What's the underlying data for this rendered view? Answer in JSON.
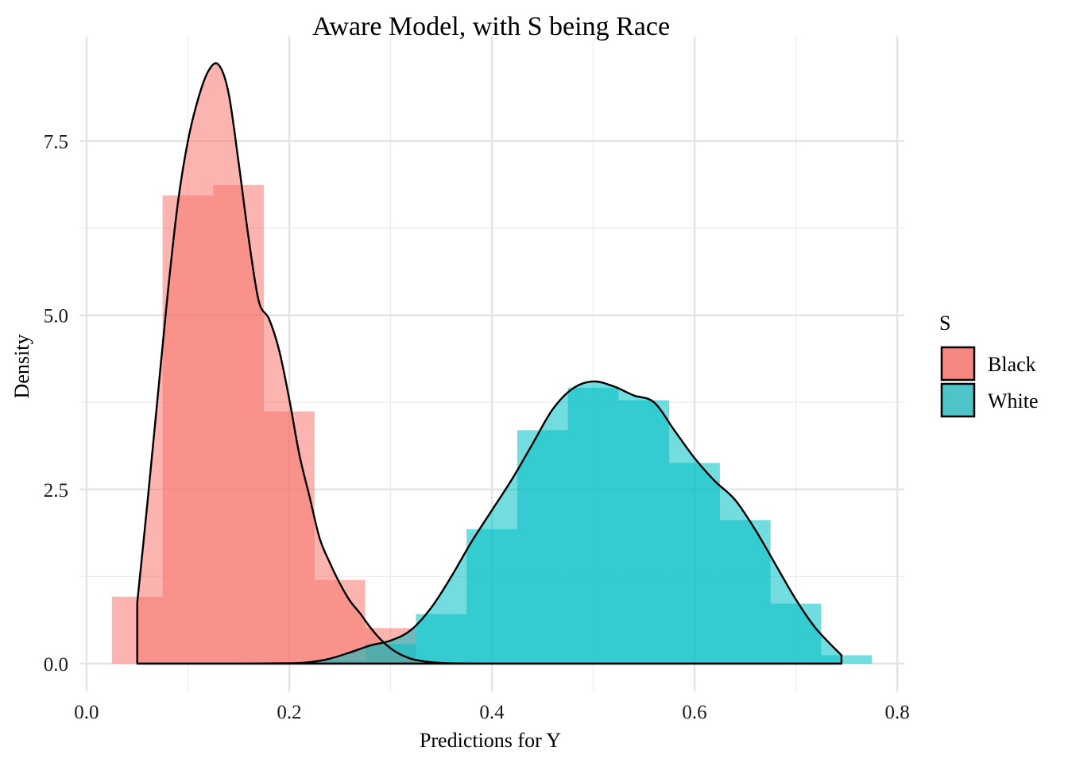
{
  "chart_data": {
    "type": "histogram+density",
    "title": "Aware Model, with S being Race",
    "xlabel": "Predictions for Y",
    "ylabel": "Density",
    "xlim": [
      -0.007,
      0.807
    ],
    "ylim": [
      -0.4,
      9.0
    ],
    "x_ticks": [
      0.0,
      0.2,
      0.4,
      0.6,
      0.8
    ],
    "x_tick_labels": [
      "0.0",
      "0.2",
      "0.4",
      "0.6",
      "0.8"
    ],
    "y_ticks": [
      0.0,
      2.5,
      5.0,
      7.5
    ],
    "y_tick_labels": [
      "0.0",
      "2.5",
      "5.0",
      "7.5"
    ],
    "grid": true,
    "legend": {
      "title": "S",
      "position": "right",
      "entries": [
        "Black",
        "White"
      ]
    },
    "bin_width": 0.05,
    "series": [
      {
        "name": "Black",
        "color": "#F8766D",
        "histogram": {
          "bin_centers": [
            0.05,
            0.1,
            0.15,
            0.2,
            0.25,
            0.3,
            0.35
          ],
          "values": [
            0.96,
            6.72,
            6.87,
            3.62,
            1.2,
            0.51,
            0.0
          ]
        },
        "density": {
          "x": [
            0.05,
            0.06,
            0.07,
            0.08,
            0.09,
            0.1,
            0.11,
            0.12,
            0.13,
            0.14,
            0.15,
            0.16,
            0.17,
            0.18,
            0.19,
            0.2,
            0.21,
            0.22,
            0.23,
            0.24,
            0.25,
            0.26,
            0.27,
            0.28,
            0.29,
            0.3,
            0.31,
            0.32,
            0.33,
            0.34,
            0.35,
            0.37,
            0.4,
            0.5,
            0.6,
            0.7,
            0.745
          ],
          "y": [
            0.87,
            2.3,
            3.8,
            5.3,
            6.6,
            7.5,
            8.1,
            8.5,
            8.6,
            8.2,
            7.2,
            6.1,
            5.2,
            4.95,
            4.5,
            3.8,
            3.0,
            2.4,
            1.8,
            1.45,
            1.15,
            0.9,
            0.72,
            0.52,
            0.35,
            0.22,
            0.13,
            0.07,
            0.04,
            0.02,
            0.01,
            0.002,
            0.0,
            0.0,
            0.0,
            0.0,
            0.0
          ]
        }
      },
      {
        "name": "White",
        "color": "#00BFC4",
        "histogram": {
          "bin_centers": [
            0.25,
            0.3,
            0.35,
            0.4,
            0.45,
            0.5,
            0.55,
            0.6,
            0.65,
            0.7,
            0.75
          ],
          "values": [
            0.05,
            0.28,
            0.71,
            1.93,
            3.35,
            3.96,
            3.78,
            2.88,
            2.06,
            0.86,
            0.12
          ]
        },
        "density": {
          "x": [
            0.05,
            0.15,
            0.2,
            0.22,
            0.24,
            0.26,
            0.28,
            0.3,
            0.32,
            0.34,
            0.36,
            0.38,
            0.4,
            0.42,
            0.44,
            0.46,
            0.48,
            0.5,
            0.52,
            0.54,
            0.56,
            0.58,
            0.6,
            0.62,
            0.64,
            0.66,
            0.68,
            0.7,
            0.72,
            0.745
          ],
          "y": [
            0.0,
            0.0,
            0.005,
            0.02,
            0.07,
            0.16,
            0.26,
            0.33,
            0.48,
            0.8,
            1.25,
            1.75,
            2.2,
            2.65,
            3.15,
            3.65,
            3.95,
            4.05,
            3.98,
            3.85,
            3.75,
            3.35,
            2.95,
            2.62,
            2.35,
            1.92,
            1.42,
            0.92,
            0.5,
            0.12
          ]
        }
      }
    ]
  }
}
